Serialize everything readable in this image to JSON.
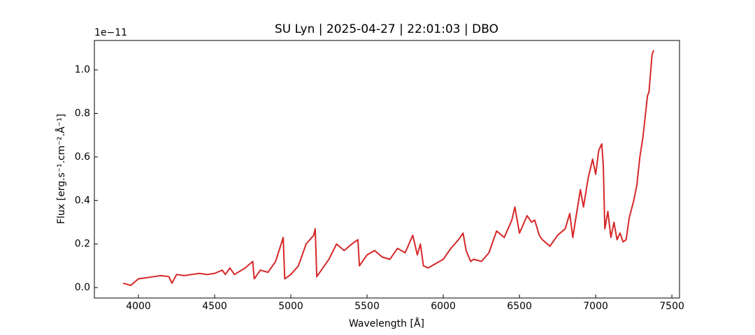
{
  "chart_data": {
    "type": "line",
    "title": "SU Lyn | 2025-04-27 | 22:01:03 | DBO",
    "x_label": "Wavelength [Å]",
    "y_label": "Flux [erg.s⁻¹.cm⁻².Å⁻¹]",
    "y_offset_label": "1e−11",
    "xlim": [
      3711,
      7550
    ],
    "ylim": [
      -0.048,
      1.135
    ],
    "xticks": [
      4000,
      4500,
      5000,
      5500,
      6000,
      6500,
      7000,
      7500
    ],
    "yticks": [
      {
        "value": 0,
        "label": "0.0"
      },
      0.2,
      0.4,
      0.6,
      0.8,
      {
        "value": 1,
        "label": "1.0"
      }
    ],
    "series": [
      {
        "color": "#d62728",
        "x": [
          3900,
          3950,
          4000,
          4050,
          4100,
          4150,
          4200,
          4220,
          4250,
          4300,
          4350,
          4400,
          4450,
          4500,
          4550,
          4570,
          4600,
          4630,
          4700,
          4750,
          4760,
          4800,
          4850,
          4900,
          4950,
          4960,
          5000,
          5050,
          5100,
          5150,
          5160,
          5170,
          5200,
          5250,
          5300,
          5350,
          5400,
          5440,
          5450,
          5500,
          5550,
          5600,
          5650,
          5700,
          5750,
          5800,
          5830,
          5850,
          5870,
          5900,
          5950,
          6000,
          6050,
          6100,
          6130,
          6150,
          6180,
          6200,
          6250,
          6300,
          6350,
          6400,
          6450,
          6470,
          6500,
          6550,
          6580,
          6600,
          6630,
          6650,
          6700,
          6750,
          6800,
          6830,
          6850,
          6870,
          6900,
          6920,
          6950,
          6980,
          7000,
          7020,
          7040,
          7050,
          7060,
          7080,
          7100,
          7120,
          7140,
          7160,
          7180,
          7200,
          7220,
          7250,
          7270,
          7290,
          7310,
          7340,
          7350,
          7370,
          7380
        ],
        "values": [
          0.02,
          0.01,
          0.04,
          0.045,
          0.05,
          0.055,
          0.05,
          0.02,
          0.06,
          0.055,
          0.06,
          0.065,
          0.06,
          0.065,
          0.08,
          0.06,
          0.09,
          0.06,
          0.09,
          0.12,
          0.04,
          0.08,
          0.07,
          0.12,
          0.23,
          0.04,
          0.06,
          0.1,
          0.2,
          0.24,
          0.27,
          0.05,
          0.08,
          0.13,
          0.2,
          0.17,
          0.2,
          0.22,
          0.1,
          0.15,
          0.17,
          0.14,
          0.13,
          0.18,
          0.16,
          0.24,
          0.15,
          0.2,
          0.1,
          0.09,
          0.11,
          0.13,
          0.18,
          0.22,
          0.25,
          0.17,
          0.12,
          0.13,
          0.12,
          0.16,
          0.26,
          0.23,
          0.31,
          0.37,
          0.25,
          0.33,
          0.3,
          0.31,
          0.24,
          0.22,
          0.19,
          0.24,
          0.27,
          0.34,
          0.23,
          0.32,
          0.45,
          0.37,
          0.5,
          0.59,
          0.52,
          0.63,
          0.66,
          0.56,
          0.27,
          0.35,
          0.23,
          0.3,
          0.22,
          0.25,
          0.21,
          0.22,
          0.32,
          0.4,
          0.47,
          0.6,
          0.69,
          0.88,
          0.9,
          1.07,
          1.09
        ]
      }
    ]
  }
}
